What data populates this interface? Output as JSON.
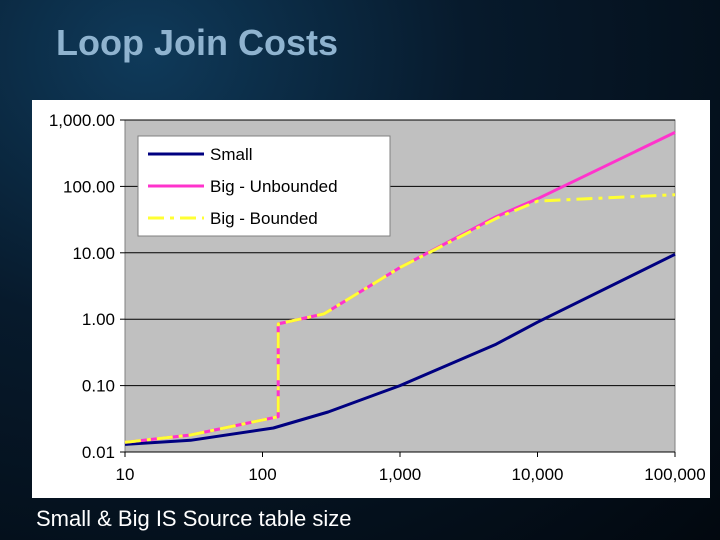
{
  "slide": {
    "title": "Loop Join Costs",
    "caption": "Small & Big IS Source table size"
  },
  "chart_data": {
    "type": "line",
    "title": "",
    "xlabel": "",
    "ylabel": "",
    "x_scale": "log",
    "y_scale": "log",
    "xlim": [
      10,
      100000
    ],
    "ylim": [
      0.01,
      1000
    ],
    "x_ticks": [
      "10",
      "100",
      "1,000",
      "10,000",
      "100,000"
    ],
    "y_ticks": [
      "1,000.00",
      "100.00",
      "10.00",
      "1.00",
      "0.10",
      "0.01"
    ],
    "grid": "horizontal",
    "plot_background": "#c0c0c0",
    "legend_position": "top-left",
    "series": [
      {
        "name": "Small",
        "color": "#000080",
        "style": "solid",
        "points": [
          [
            10,
            0.013
          ],
          [
            30,
            0.015
          ],
          [
            120,
            0.023
          ],
          [
            300,
            0.04
          ],
          [
            1000,
            0.1
          ],
          [
            5000,
            0.42
          ],
          [
            10000,
            0.9
          ],
          [
            100000,
            9.5
          ]
        ]
      },
      {
        "name": "Big - Unbounded",
        "color": "#ff33cc",
        "style": "solid",
        "points": [
          [
            10,
            0.014
          ],
          [
            30,
            0.018
          ],
          [
            130,
            0.034
          ],
          [
            130,
            0.85
          ],
          [
            280,
            1.2
          ],
          [
            1000,
            6.0
          ],
          [
            5000,
            35
          ],
          [
            10000,
            65
          ],
          [
            100000,
            650
          ]
        ]
      },
      {
        "name": "Big - Bounded",
        "color": "#ffff33",
        "style": "dashed",
        "points": [
          [
            10,
            0.014
          ],
          [
            30,
            0.018
          ],
          [
            130,
            0.034
          ],
          [
            130,
            0.85
          ],
          [
            280,
            1.2
          ],
          [
            1000,
            6.0
          ],
          [
            5000,
            33
          ],
          [
            10000,
            60
          ],
          [
            100000,
            75
          ]
        ]
      }
    ]
  }
}
